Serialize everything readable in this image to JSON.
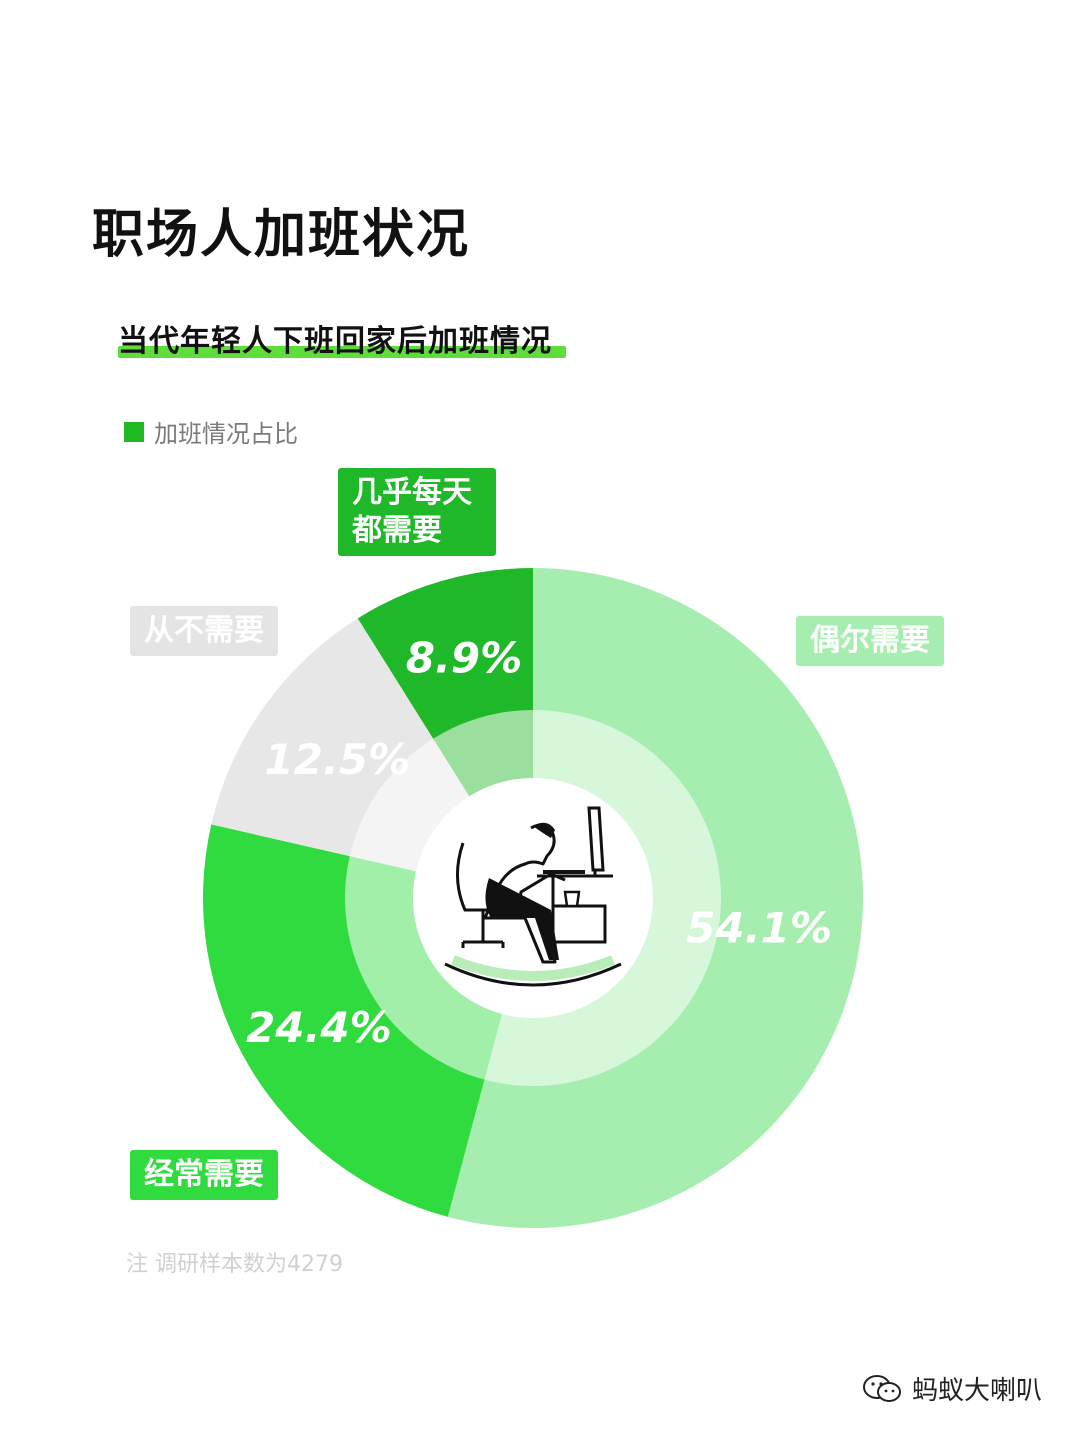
{
  "page": {
    "title": "职场人加班状况",
    "subtitle": "当代年轻人下班回家后加班情况",
    "note": "注   调研样本数为4279",
    "watermark": "蚂蚁大喇叭"
  },
  "legend": {
    "label": "加班情况占比",
    "color": "#22b822"
  },
  "colors": {
    "ouer": "#a6eeb0",
    "jingchang": "#2fdb3e",
    "congbu": "#e7e7e7",
    "jihu": "#1fb828",
    "label_ouer": "#a6eeb0",
    "label_jingchang": "#2fdb3e",
    "label_congbu": "#e4e4e4",
    "label_jihu": "#1fb828"
  },
  "tags": {
    "ouer": "偶尔需要",
    "jingchang": "经常需要",
    "congbu": "从不需要",
    "jihu": "几乎每天都需要",
    "jihu_line1": "几乎每天",
    "jihu_line2": "都需要"
  },
  "chart_data": {
    "type": "pie",
    "variant": "donut",
    "title": "当代年轻人下班回家后加班情况",
    "legend": [
      "加班情况占比"
    ],
    "categories": [
      "偶尔需要",
      "经常需要",
      "从不需要",
      "几乎每天都需要"
    ],
    "values": [
      54.1,
      24.4,
      12.5,
      8.9
    ],
    "value_labels": [
      "54.1%",
      "24.4%",
      "12.5%",
      "8.9%"
    ],
    "unit": "%"
  }
}
